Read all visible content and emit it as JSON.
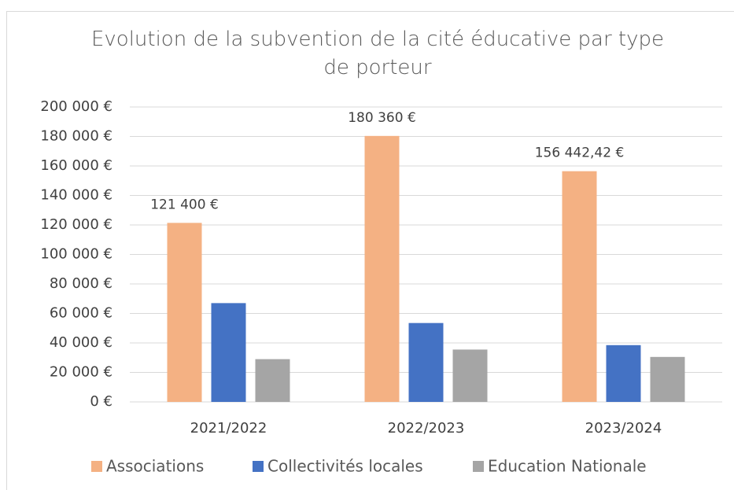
{
  "chart_data": {
    "type": "bar",
    "title": "Evolution de la subvention de la cité éducative par type de porteur",
    "categories": [
      "2021/2022",
      "2022/2023",
      "2023/2024"
    ],
    "series": [
      {
        "name": "Associations",
        "color": "#f4b183",
        "values": [
          121400,
          180360,
          156442.42
        ],
        "value_labels": [
          "121 400 €",
          "180 360 €",
          "156 442,42 €"
        ]
      },
      {
        "name": "Collectivités locales",
        "color": "#4472c4",
        "values": [
          67000,
          53500,
          38500
        ]
      },
      {
        "name": "Education Nationale",
        "color": "#a5a5a5",
        "values": [
          29000,
          35500,
          30500
        ]
      }
    ],
    "ylim": [
      0,
      200000
    ],
    "yticks": [
      {
        "value": 0,
        "label": "0 €"
      },
      {
        "value": 20000,
        "label": "20 000 €"
      },
      {
        "value": 40000,
        "label": "40 000 €"
      },
      {
        "value": 60000,
        "label": "60 000 €"
      },
      {
        "value": 80000,
        "label": "80 000 €"
      },
      {
        "value": 100000,
        "label": "100 000 €"
      },
      {
        "value": 120000,
        "label": "120 000 €"
      },
      {
        "value": 140000,
        "label": "140 000 €"
      },
      {
        "value": 160000,
        "label": "160 000 €"
      },
      {
        "value": 180000,
        "label": "180 000 €"
      },
      {
        "value": 200000,
        "label": "200 000 €"
      }
    ],
    "grid": true,
    "legend": "bottom"
  }
}
